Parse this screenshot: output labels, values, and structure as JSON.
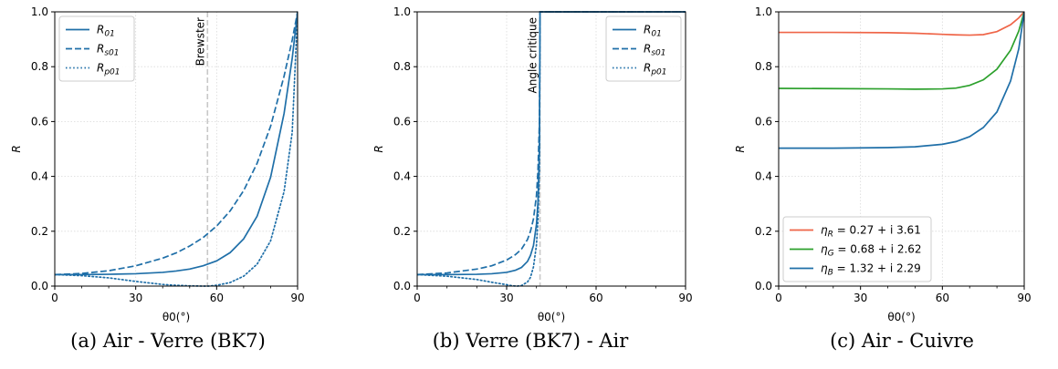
{
  "chart_data": [
    {
      "type": "line",
      "caption": "(a) Air - Verre (BK7)",
      "xlabel": "θ0(°)",
      "ylabel": "R",
      "xlim": [
        0,
        90
      ],
      "ylim": [
        0,
        1
      ],
      "xticks": [
        0,
        30,
        60,
        90
      ],
      "yticks": [
        0.0,
        0.2,
        0.4,
        0.6,
        0.8,
        1.0
      ],
      "ytick_labels": [
        "0.0",
        "0.2",
        "0.4",
        "0.6",
        "0.8",
        "1.0"
      ],
      "grid": true,
      "legend_position": "top-left",
      "vline": {
        "x": 56.6,
        "label": "Brewster",
        "color": "#c8c8c8"
      },
      "series": [
        {
          "name": "R01",
          "label_main": "R",
          "label_sub": "01",
          "style": "solid",
          "color": "#1f6fa8",
          "x": [
            0,
            10,
            20,
            30,
            40,
            45,
            50,
            55,
            60,
            65,
            70,
            75,
            80,
            85,
            88,
            90
          ],
          "y": [
            0.042,
            0.042,
            0.043,
            0.045,
            0.05,
            0.055,
            0.062,
            0.074,
            0.092,
            0.122,
            0.172,
            0.255,
            0.397,
            0.63,
            0.83,
            1.0
          ]
        },
        {
          "name": "Rs01",
          "label_main": "R",
          "label_sub": "s01",
          "style": "dashed",
          "color": "#1f6fa8",
          "x": [
            0,
            10,
            20,
            30,
            40,
            45,
            50,
            55,
            60,
            65,
            70,
            75,
            80,
            85,
            88,
            90
          ],
          "y": [
            0.042,
            0.046,
            0.056,
            0.074,
            0.102,
            0.121,
            0.146,
            0.177,
            0.219,
            0.274,
            0.348,
            0.448,
            0.583,
            0.766,
            0.897,
            1.0
          ]
        },
        {
          "name": "Rp01",
          "label_main": "R",
          "label_sub": "p01",
          "style": "dotted",
          "color": "#1f6fa8",
          "x": [
            0,
            10,
            20,
            30,
            40,
            45,
            50,
            55,
            57,
            60,
            65,
            70,
            75,
            80,
            85,
            88,
            90
          ],
          "y": [
            0.042,
            0.038,
            0.03,
            0.017,
            0.006,
            0.003,
            0.001,
            0.0,
            0.0,
            0.003,
            0.013,
            0.036,
            0.08,
            0.165,
            0.345,
            0.56,
            1.0
          ]
        }
      ]
    },
    {
      "type": "line",
      "caption": "(b) Verre (BK7) - Air",
      "xlabel": "θ0(°)",
      "ylabel": "R",
      "xlim": [
        0,
        90
      ],
      "ylim": [
        0,
        1
      ],
      "xticks": [
        0,
        30,
        60,
        90
      ],
      "yticks": [
        0.0,
        0.2,
        0.4,
        0.6,
        0.8,
        1.0
      ],
      "ytick_labels": [
        "0.0",
        "0.2",
        "0.4",
        "0.6",
        "0.8",
        "1.0"
      ],
      "grid": true,
      "legend_position": "top-right",
      "vline": {
        "x": 41.2,
        "label": "Angle critique",
        "color": "#c8c8c8"
      },
      "series": [
        {
          "name": "R01",
          "label_main": "R",
          "label_sub": "01",
          "style": "solid",
          "color": "#1f6fa8",
          "x": [
            0,
            10,
            20,
            25,
            30,
            33,
            35,
            37,
            38,
            39,
            40,
            40.5,
            41.0,
            41.2,
            90
          ],
          "y": [
            0.042,
            0.042,
            0.043,
            0.045,
            0.05,
            0.058,
            0.068,
            0.09,
            0.112,
            0.148,
            0.225,
            0.305,
            0.5,
            1.0,
            1.0
          ]
        },
        {
          "name": "Rs01",
          "label_main": "R",
          "label_sub": "s01",
          "style": "dashed",
          "color": "#1f6fa8",
          "x": [
            0,
            10,
            20,
            25,
            30,
            33,
            35,
            37,
            38,
            39,
            40,
            40.5,
            41.0,
            41.2,
            90
          ],
          "y": [
            0.042,
            0.048,
            0.062,
            0.074,
            0.095,
            0.115,
            0.135,
            0.17,
            0.2,
            0.245,
            0.33,
            0.42,
            0.6,
            1.0,
            1.0
          ]
        },
        {
          "name": "Rp01",
          "label_main": "R",
          "label_sub": "p01",
          "style": "dotted",
          "color": "#1f6fa8",
          "x": [
            0,
            10,
            20,
            25,
            30,
            32,
            33.6,
            35,
            37,
            38,
            39,
            40,
            40.5,
            41.0,
            41.2,
            90
          ],
          "y": [
            0.042,
            0.036,
            0.024,
            0.014,
            0.005,
            0.001,
            0.0,
            0.002,
            0.015,
            0.032,
            0.07,
            0.15,
            0.24,
            0.42,
            1.0,
            1.0
          ]
        }
      ]
    },
    {
      "type": "line",
      "caption": "(c) Air - Cuivre",
      "xlabel": "θ0(°)",
      "ylabel": "R",
      "xlim": [
        0,
        90
      ],
      "ylim": [
        0,
        1
      ],
      "xticks": [
        0,
        30,
        60,
        90
      ],
      "yticks": [
        0.0,
        0.2,
        0.4,
        0.6,
        0.8,
        1.0
      ],
      "ytick_labels": [
        "0.0",
        "0.2",
        "0.4",
        "0.6",
        "0.8",
        "1.0"
      ],
      "grid": true,
      "legend_position": "bottom-left",
      "series": [
        {
          "name": "ηR = 0.27 + i 3.61",
          "label_main": "η",
          "label_sub": "R",
          "label_rest": " = 0.27 + i 3.61",
          "style": "solid",
          "color": "#ef6548",
          "x": [
            0,
            20,
            40,
            50,
            60,
            65,
            70,
            75,
            80,
            85,
            88,
            90
          ],
          "y": [
            0.925,
            0.925,
            0.924,
            0.922,
            0.918,
            0.916,
            0.915,
            0.917,
            0.928,
            0.953,
            0.978,
            1.0
          ]
        },
        {
          "name": "ηG = 0.68 + i 2.62",
          "label_main": "η",
          "label_sub": "G",
          "label_rest": " = 0.68 + i 2.62",
          "style": "solid",
          "color": "#2ca02c",
          "x": [
            0,
            20,
            40,
            50,
            60,
            65,
            70,
            75,
            80,
            85,
            88,
            90
          ],
          "y": [
            0.721,
            0.72,
            0.719,
            0.718,
            0.719,
            0.722,
            0.732,
            0.752,
            0.791,
            0.86,
            0.93,
            1.0
          ]
        },
        {
          "name": "ηB = 1.32 + i 2.29",
          "label_main": "η",
          "label_sub": "B",
          "label_rest": " = 1.32 + i 2.29",
          "style": "solid",
          "color": "#1f6fa8",
          "x": [
            0,
            20,
            40,
            50,
            60,
            65,
            70,
            75,
            80,
            85,
            88,
            90
          ],
          "y": [
            0.503,
            0.503,
            0.505,
            0.508,
            0.517,
            0.527,
            0.545,
            0.578,
            0.635,
            0.748,
            0.865,
            1.0
          ]
        }
      ]
    }
  ]
}
